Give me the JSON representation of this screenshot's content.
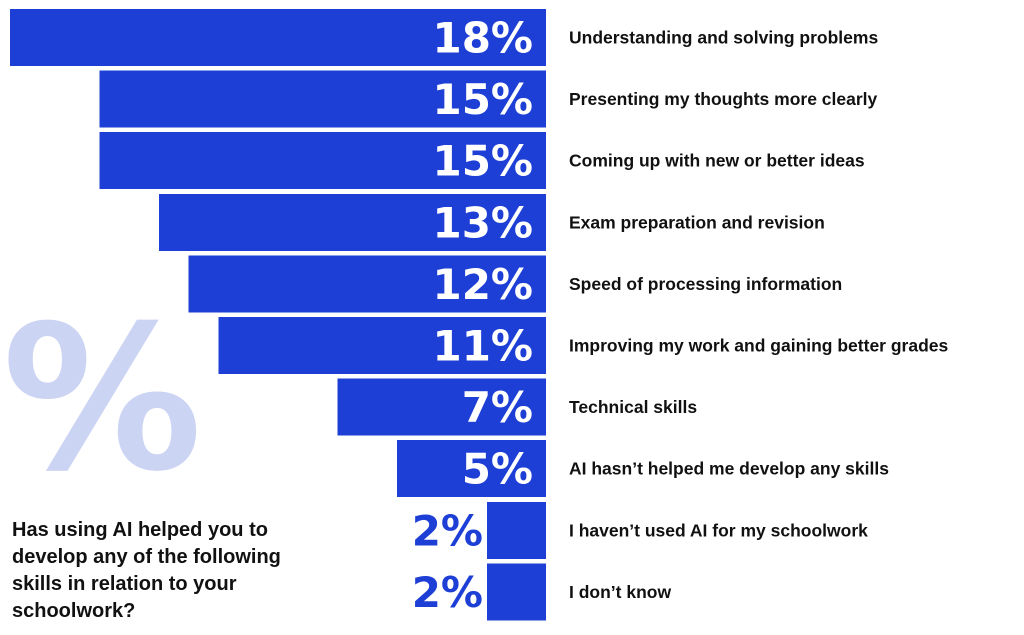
{
  "question": "Has using AI helped you to develop any of the following skills in relation to your schoolwork?",
  "decorative_symbol": "%",
  "colors": {
    "bar": "#1d3fd6",
    "label_on_bar": "#ffffff",
    "label_outside": "#1d3fd6",
    "category_text": "#111111",
    "decor": "#ccd4f4"
  },
  "chart_data": {
    "type": "bar",
    "orientation": "horizontal",
    "bar_alignment": "right",
    "categories": [
      "Understanding and solving problems",
      "Presenting my thoughts more clearly",
      "Coming up with new or better ideas",
      "Exam preparation and revision",
      "Speed of processing information",
      "Improving my work and gaining better grades",
      "Technical skills",
      "AI hasn’t helped me develop any skills",
      "I haven’t used AI for my schoolwork",
      "I don’t know"
    ],
    "values": [
      18,
      15,
      15,
      13,
      12,
      11,
      7,
      5,
      2,
      2
    ],
    "value_labels": [
      "18%",
      "15%",
      "15%",
      "13%",
      "12%",
      "11%",
      "7%",
      "5%",
      "2%",
      "2%"
    ],
    "unit": "%",
    "xlim": [
      0,
      18
    ],
    "grid": false,
    "legend": "none"
  }
}
